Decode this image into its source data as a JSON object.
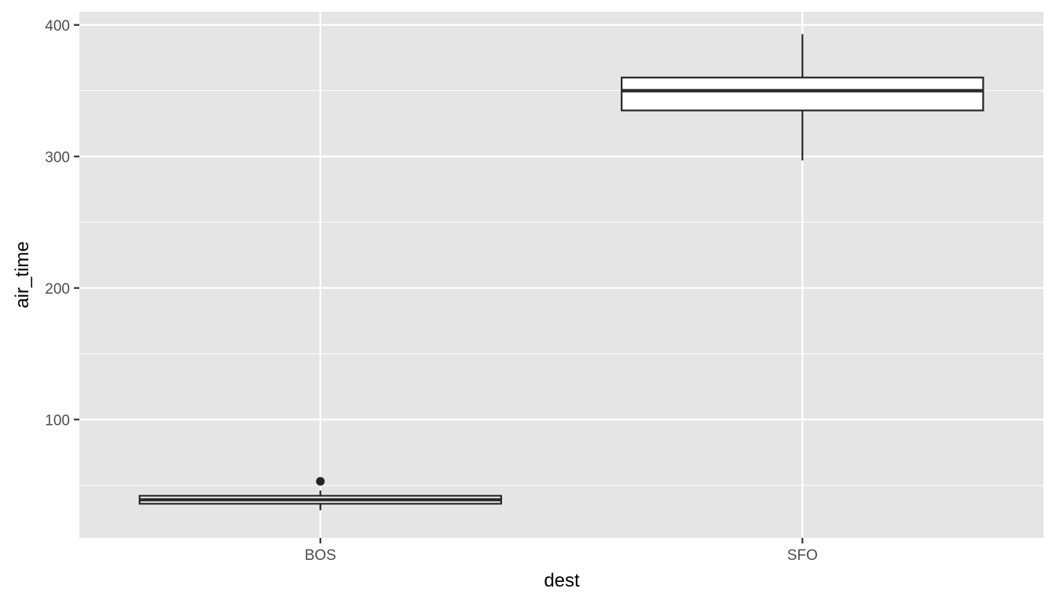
{
  "chart_data": {
    "type": "boxplot",
    "title": "",
    "xlabel": "dest",
    "ylabel": "air_time",
    "categories": [
      "BOS",
      "SFO"
    ],
    "ylim": [
      10,
      410
    ],
    "yticks": [
      100,
      200,
      300,
      400
    ],
    "grid": true,
    "legend": "none",
    "boxes": [
      {
        "category": "BOS",
        "whisker_low": 31,
        "q1": 36,
        "median": 39,
        "q3": 42,
        "whisker_high": 46,
        "outliers": [
          53
        ]
      },
      {
        "category": "SFO",
        "whisker_low": 297,
        "q1": 335,
        "median": 350,
        "q3": 360,
        "whisker_high": 393,
        "outliers": []
      }
    ],
    "colors": {
      "panel": "#e5e5e5",
      "grid": "#ffffff",
      "box_fill": "#ffffff",
      "box_stroke": "#262626",
      "tick_label": "#4d4d4d",
      "axis_title": "#000000"
    }
  }
}
